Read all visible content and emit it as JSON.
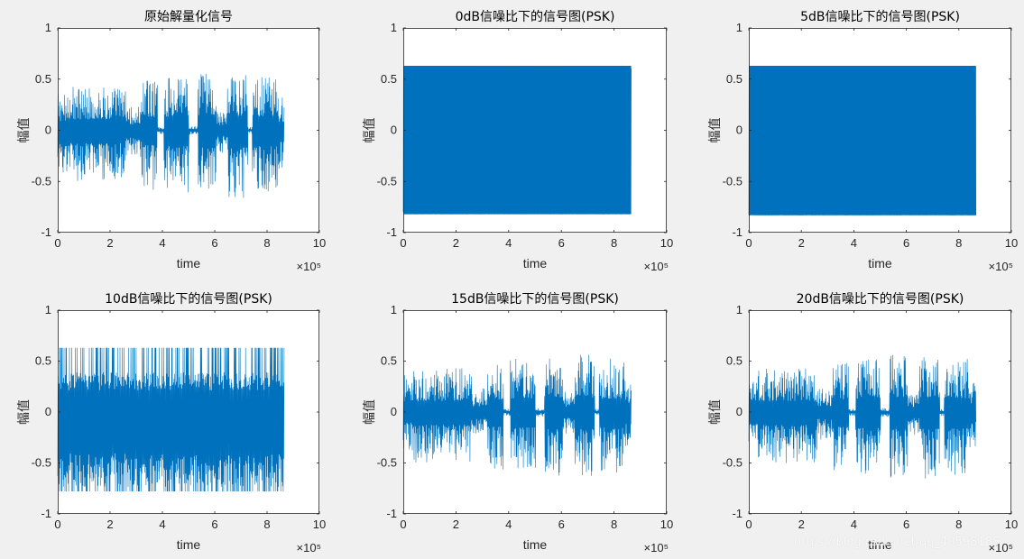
{
  "chart_data": [
    {
      "type": "line",
      "title": "原始解量化信号",
      "xlabel": "time",
      "ylabel": "幅值",
      "xlim": [
        0,
        1000000
      ],
      "ylim": [
        -1,
        1
      ],
      "x_ticks": [
        "0",
        "2",
        "4",
        "6",
        "8",
        "10"
      ],
      "y_ticks": [
        "1",
        "0.5",
        "0",
        "-0.5",
        "-1"
      ],
      "x_exponent": "×10⁵",
      "grid": false,
      "series": [
        {
          "values": [
            0,
            0.63,
            -0.74,
            0.52,
            -0.69,
            0.55,
            -0.72,
            0.58,
            -0.78,
            0.62,
            -0.77,
            0.45,
            -0.65,
            0.53,
            -0.75,
            0.6,
            -0.71,
            0.55,
            -0.8,
            0
          ]
        }
      ],
      "signal": {
        "x_end": 865000,
        "max": 0.63,
        "min": -0.82
      }
    },
    {
      "type": "line",
      "title": "0dB信噪比下的信号图(PSK)",
      "xlabel": "time",
      "ylabel": "幅值",
      "xlim": [
        0,
        1000000
      ],
      "ylim": [
        -1,
        1
      ],
      "x_ticks": [
        "0",
        "2",
        "4",
        "6",
        "8",
        "10"
      ],
      "y_ticks": [
        "1",
        "0.5",
        "0",
        "-0.5",
        "-1"
      ],
      "x_exponent": "×10⁵",
      "grid": false,
      "series": [
        {
          "values": [
            0.63,
            -0.82,
            0.63,
            -0.82
          ]
        }
      ],
      "signal": {
        "x_end": 865000,
        "max": 0.63,
        "min": -0.82
      }
    },
    {
      "type": "line",
      "title": "5dB信噪比下的信号图(PSK)",
      "xlabel": "time",
      "ylabel": "幅值",
      "xlim": [
        0,
        1000000
      ],
      "ylim": [
        -1,
        1
      ],
      "x_ticks": [
        "0",
        "2",
        "4",
        "6",
        "8",
        "10"
      ],
      "y_ticks": [
        "1",
        "0.5",
        "0",
        "-0.5",
        "-1"
      ],
      "x_exponent": "×10⁵",
      "grid": false,
      "series": [
        {
          "values": [
            0.63,
            -0.82,
            0.63,
            -0.82
          ]
        }
      ],
      "signal": {
        "x_end": 865000,
        "max": 0.63,
        "min": -0.83
      }
    },
    {
      "type": "line",
      "title": "10dB信噪比下的信号图(PSK)",
      "xlabel": "time",
      "ylabel": "幅值",
      "xlim": [
        0,
        1000000
      ],
      "ylim": [
        -1,
        1
      ],
      "x_ticks": [
        "0",
        "2",
        "4",
        "6",
        "8",
        "10"
      ],
      "y_ticks": [
        "1",
        "0.5",
        "0",
        "-0.5",
        "-1"
      ],
      "x_exponent": "×10⁵",
      "grid": false,
      "series": [
        {
          "values": [
            0.63,
            -0.82,
            0.63,
            -0.82
          ]
        }
      ],
      "signal": {
        "x_end": 865000,
        "max": 0.63,
        "min": -0.82
      }
    },
    {
      "type": "line",
      "title": "15dB信噪比下的信号图(PSK)",
      "xlabel": "time",
      "ylabel": "幅值",
      "xlim": [
        0,
        1000000
      ],
      "ylim": [
        -1,
        1
      ],
      "x_ticks": [
        "0",
        "2",
        "4",
        "6",
        "8",
        "10"
      ],
      "y_ticks": [
        "1",
        "0.5",
        "0",
        "-0.5",
        "-1"
      ],
      "x_exponent": "×10⁵",
      "grid": false,
      "series": [
        {
          "values": [
            0.63,
            -0.8,
            0.63,
            -0.8
          ]
        }
      ],
      "signal": {
        "x_end": 865000,
        "max": 0.63,
        "min": -0.8
      }
    },
    {
      "type": "line",
      "title": "20dB信噪比下的信号图(PSK)",
      "xlabel": "time",
      "ylabel": "幅值",
      "xlim": [
        0,
        1000000
      ],
      "ylim": [
        -1,
        1
      ],
      "x_ticks": [
        "0",
        "2",
        "4",
        "6",
        "8",
        "10"
      ],
      "y_ticks": [
        "1",
        "0.5",
        "0",
        "-0.5",
        "-1"
      ],
      "x_exponent": "×10⁵",
      "grid": false,
      "series": [
        {
          "values": [
            0.63,
            -0.82,
            0.63,
            -0.82
          ]
        }
      ],
      "signal": {
        "x_end": 865000,
        "max": 0.63,
        "min": -0.82
      }
    }
  ],
  "colors": {
    "line": "#0072BD",
    "axes_bg": "#ffffff",
    "figure_bg": "#f0f0f0",
    "text": "#262626"
  },
  "watermark": "https://blog.csdn.net/qq_40598185"
}
